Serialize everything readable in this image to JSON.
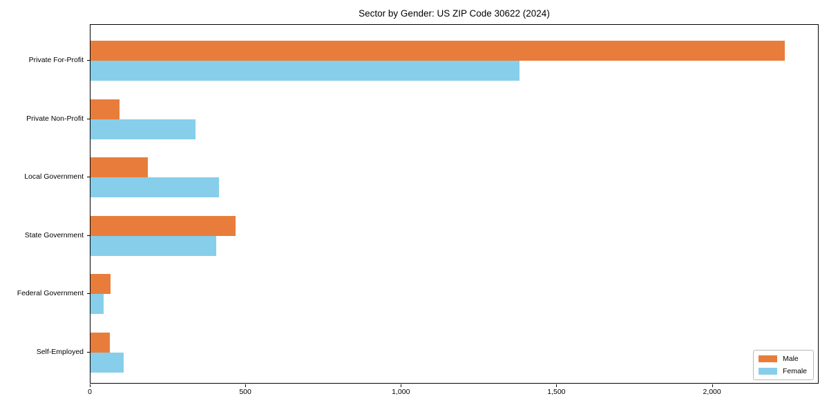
{
  "chart_data": {
    "type": "bar",
    "orientation": "horizontal",
    "title": "Sector by Gender: US ZIP Code 30622 (2024)",
    "categories": [
      "Private For-Profit",
      "Private Non-Profit",
      "Local Government",
      "State Government",
      "Federal Government",
      "Self-Employed"
    ],
    "series": [
      {
        "name": "Male",
        "color": "#E87D3B",
        "values": [
          2231,
          93,
          185,
          467,
          64,
          61
        ]
      },
      {
        "name": "Female",
        "color": "#87CEEB",
        "values": [
          1378,
          337,
          413,
          404,
          43,
          107
        ]
      }
    ],
    "xlabel": "",
    "ylabel": "",
    "xlim": [
      0,
      2343
    ],
    "xticks": [
      0,
      500,
      1000,
      1500,
      2000
    ],
    "xtick_labels": [
      "0",
      "500",
      "1,000",
      "1,500",
      "2,000"
    ],
    "grid": false,
    "legend": {
      "position": "lower right"
    },
    "colors": {
      "background": "#ffffff",
      "spine": "#000000",
      "text": "#000000"
    }
  }
}
